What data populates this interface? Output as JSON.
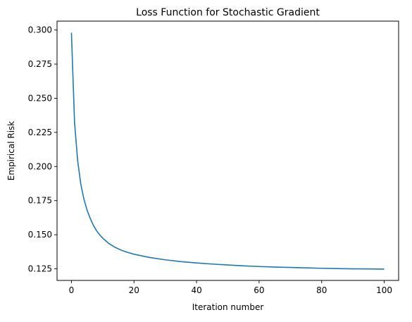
{
  "chart_data": {
    "type": "line",
    "title": "Loss Function for Stochastic Gradient",
    "xlabel": "Iteration number",
    "ylabel": "Empirical Risk",
    "xlim": [
      -4.6,
      104.6
    ],
    "ylim": [
      0.1165,
      0.3065
    ],
    "xticks": [
      0,
      20,
      40,
      60,
      80,
      100
    ],
    "xtick_labels": [
      "0",
      "20",
      "40",
      "60",
      "80",
      "100"
    ],
    "yticks": [
      0.125,
      0.15,
      0.175,
      0.2,
      0.225,
      0.25,
      0.275,
      0.3
    ],
    "ytick_labels": [
      "0.125",
      "0.150",
      "0.175",
      "0.200",
      "0.225",
      "0.250",
      "0.275",
      "0.300"
    ],
    "grid": false,
    "legend": "none",
    "series": [
      {
        "color": "#1f77b4",
        "x": [
          0,
          1,
          2,
          3,
          4,
          5,
          6,
          7,
          8,
          9,
          10,
          12,
          14,
          16,
          18,
          20,
          25,
          30,
          35,
          40,
          45,
          50,
          55,
          60,
          65,
          70,
          75,
          80,
          85,
          90,
          95,
          100
        ],
        "y": [
          0.298,
          0.232,
          0.204,
          0.187,
          0.176,
          0.168,
          0.162,
          0.157,
          0.153,
          0.15,
          0.1475,
          0.1435,
          0.1407,
          0.1386,
          0.137,
          0.1357,
          0.1333,
          0.1316,
          0.1303,
          0.1293,
          0.1285,
          0.1278,
          0.1272,
          0.1267,
          0.1263,
          0.126,
          0.1257,
          0.1254,
          0.1252,
          0.125,
          0.1249,
          0.1248
        ]
      }
    ]
  }
}
